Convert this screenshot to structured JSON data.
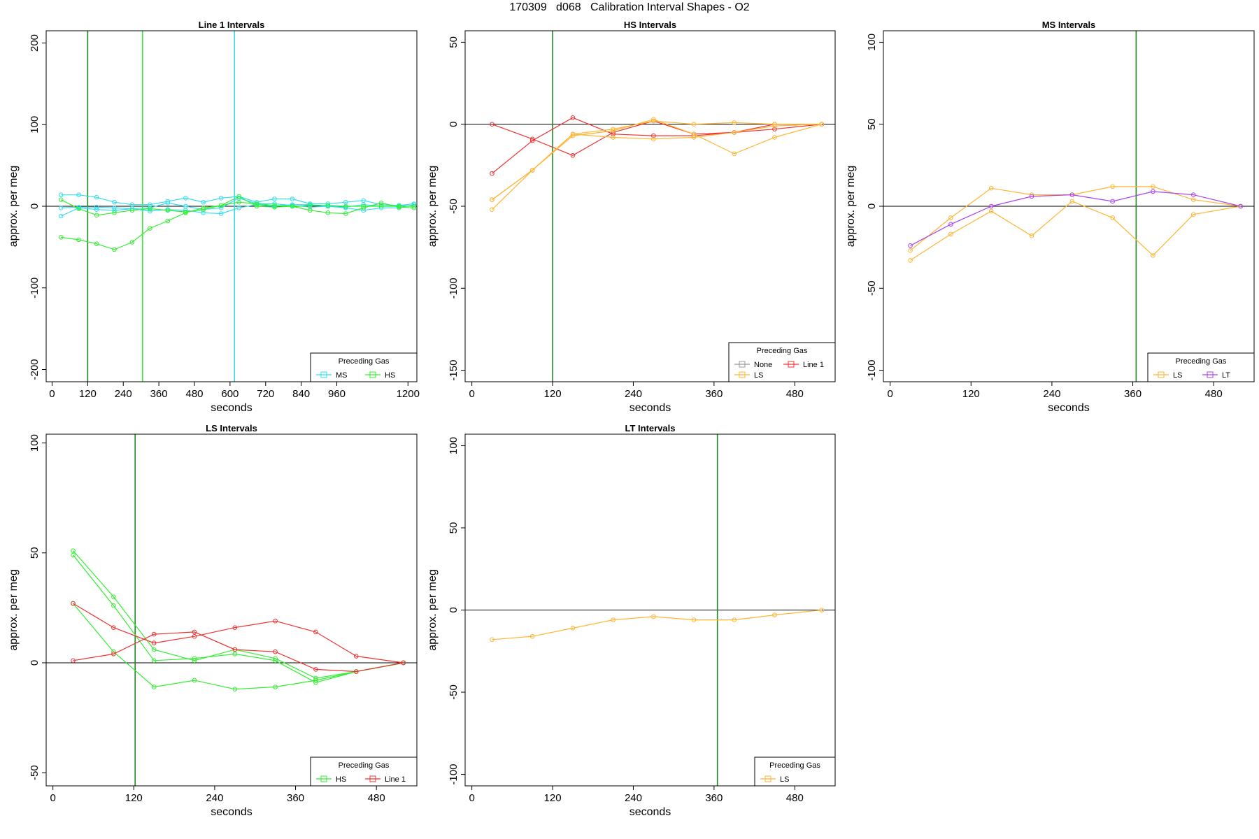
{
  "figure": {
    "title": "170309   d068   Calibration Interval Shapes - O2"
  },
  "colors": {
    "None": "#999999",
    "Line 1": "#ee3333",
    "HS": "#33ee33",
    "MS": "#33ddee",
    "LS": "#ffb533",
    "LT": "#aa44ee",
    "vline_dark_green": "#228822",
    "vline_green": "#33ee33",
    "vline_cyan": "#33ddee"
  },
  "chart_data": [
    {
      "type": "line",
      "title": "Line 1 Intervals",
      "xlabel": "seconds",
      "ylabel": "approx. per meg",
      "xlim": [
        -20,
        1230
      ],
      "ylim": [
        -215,
        215
      ],
      "xticks": [
        0,
        120,
        240,
        360,
        480,
        600,
        720,
        840,
        960,
        1200
      ],
      "yticks": [
        -200,
        -100,
        0,
        100,
        200
      ],
      "hline": 0,
      "vlines": [
        {
          "x": 120,
          "color_key": "vline_dark_green"
        },
        {
          "x": 305,
          "color_key": "vline_green"
        },
        {
          "x": 615,
          "color_key": "vline_cyan"
        }
      ],
      "legend": {
        "title": "Preceding Gas",
        "position": "bottom-right",
        "entries": [
          "MS",
          "HS"
        ]
      },
      "series": [
        {
          "name": "MS",
          "x": [
            30,
            90,
            150,
            210,
            270,
            330,
            390,
            450,
            510,
            570,
            630,
            690,
            750,
            810,
            870,
            930,
            990,
            1050,
            1110,
            1170,
            1220
          ],
          "y": [
            14,
            14,
            11,
            5,
            2,
            2,
            6,
            10,
            5,
            10,
            12,
            5,
            9,
            9,
            3,
            3,
            5,
            7,
            2,
            1,
            3
          ]
        },
        {
          "name": "MS",
          "x": [
            30,
            90,
            150,
            210,
            270,
            330,
            390,
            450,
            510,
            570,
            630,
            690,
            750,
            810,
            870,
            930,
            990,
            1050,
            1110,
            1170,
            1220
          ],
          "y": [
            -12,
            -2,
            -4,
            -5,
            -3,
            -6,
            -4,
            -5,
            -8,
            -9,
            -2,
            2,
            0,
            2,
            2,
            0,
            -2,
            -5,
            -2,
            -2,
            2
          ]
        },
        {
          "name": "MS",
          "x": [
            30,
            90,
            150,
            210,
            270,
            330,
            390,
            450,
            510,
            570,
            630,
            690,
            750,
            810,
            870,
            930,
            990,
            1050,
            1110,
            1170,
            1220
          ],
          "y": [
            -2,
            -1,
            -1,
            -2,
            -3,
            -2,
            4,
            0,
            -4,
            -2,
            10,
            3,
            3,
            1,
            -1,
            0,
            -1,
            2,
            0,
            1,
            0
          ]
        },
        {
          "name": "HS",
          "x": [
            30,
            90,
            150,
            210,
            270,
            330,
            390,
            450,
            510,
            570,
            630,
            690,
            750,
            810,
            870,
            930,
            990,
            1050,
            1110,
            1170,
            1220
          ],
          "y": [
            -38,
            -41,
            -46,
            -53,
            -44,
            -27,
            -18,
            -8,
            -2,
            1,
            5,
            3,
            1,
            0,
            1,
            1,
            0,
            0,
            0,
            0,
            0
          ]
        },
        {
          "name": "HS",
          "x": [
            30,
            90,
            150,
            210,
            270,
            330,
            390,
            450,
            510,
            570,
            630,
            690,
            750,
            810,
            870,
            930,
            990,
            1050,
            1110,
            1170,
            1220
          ],
          "y": [
            8,
            -3,
            -11,
            -8,
            -5,
            -3,
            -5,
            -7,
            -4,
            1,
            12,
            0,
            -1,
            0,
            -5,
            -8,
            -9,
            -2,
            4,
            -1,
            -2
          ]
        }
      ]
    },
    {
      "type": "line",
      "title": "HS Intervals",
      "xlabel": "seconds",
      "ylabel": "approx. per meg",
      "xlim": [
        -10,
        540
      ],
      "ylim": [
        -157,
        57
      ],
      "xticks": [
        0,
        120,
        240,
        360,
        480
      ],
      "yticks": [
        -150,
        -100,
        -50,
        0,
        50
      ],
      "hline": 0,
      "vlines": [
        {
          "x": 120,
          "color_key": "vline_dark_green"
        }
      ],
      "legend": {
        "title": "Preceding Gas",
        "position": "bottom-right",
        "entries": [
          "None",
          "Line 1",
          "LS"
        ]
      },
      "series": [
        {
          "name": "Line 1",
          "x": [
            30,
            90,
            150,
            210,
            270,
            330,
            390,
            450,
            520
          ],
          "y": [
            0,
            -9,
            -19,
            -5,
            2,
            -6,
            -5,
            -3,
            0
          ]
        },
        {
          "name": "Line 1",
          "x": [
            30,
            90,
            150,
            210,
            270,
            330,
            390,
            450,
            520
          ],
          "y": [
            -30,
            -10,
            4,
            -6,
            -7,
            -7,
            -5,
            0,
            0
          ]
        },
        {
          "name": "LS",
          "x": [
            30,
            90,
            150,
            210,
            270,
            330,
            390,
            450,
            520
          ],
          "y": [
            -52,
            -28,
            -7,
            -4,
            3,
            -6,
            -18,
            -8,
            0
          ]
        },
        {
          "name": "LS",
          "x": [
            30,
            90,
            150,
            210,
            270,
            330,
            390,
            450,
            520
          ],
          "y": [
            -46,
            -28,
            -6,
            -8,
            -9,
            -8,
            -5,
            -1,
            0
          ]
        },
        {
          "name": "LS",
          "x": [
            30,
            90,
            150,
            210,
            270,
            330,
            390,
            450,
            520
          ],
          "y": [
            -46,
            -28,
            -6,
            -3,
            2,
            0,
            1,
            0,
            0
          ]
        }
      ]
    },
    {
      "type": "line",
      "title": "MS Intervals",
      "xlabel": "seconds",
      "ylabel": "approx. per meg",
      "xlim": [
        -10,
        540
      ],
      "ylim": [
        -107,
        107
      ],
      "xticks": [
        0,
        120,
        240,
        360,
        480
      ],
      "yticks": [
        -100,
        -50,
        0,
        50,
        100
      ],
      "hline": 0,
      "vlines": [
        {
          "x": 365,
          "color_key": "vline_dark_green"
        }
      ],
      "legend": {
        "title": "Preceding Gas",
        "position": "bottom-right",
        "entries": [
          "LS",
          "LT"
        ]
      },
      "series": [
        {
          "name": "LS",
          "x": [
            30,
            90,
            150,
            210,
            270,
            330,
            390,
            450,
            520
          ],
          "y": [
            -33,
            -17,
            -3,
            -18,
            3,
            -7,
            -30,
            -5,
            0
          ]
        },
        {
          "name": "LS",
          "x": [
            30,
            90,
            150,
            210,
            270,
            330,
            390,
            450,
            520
          ],
          "y": [
            -27,
            -7,
            11,
            7,
            7,
            12,
            12,
            4,
            0
          ]
        },
        {
          "name": "LT",
          "x": [
            30,
            90,
            150,
            210,
            270,
            330,
            390,
            450,
            520
          ],
          "y": [
            -24,
            -11,
            0,
            6,
            7,
            3,
            9,
            7,
            0
          ]
        }
      ]
    },
    {
      "type": "line",
      "title": "LS Intervals",
      "xlabel": "seconds",
      "ylabel": "approx. per meg",
      "xlim": [
        -10,
        540
      ],
      "ylim": [
        -56,
        104
      ],
      "xticks": [
        0,
        120,
        240,
        360,
        480
      ],
      "yticks": [
        -50,
        0,
        50,
        100
      ],
      "hline": 0,
      "vlines": [
        {
          "x": 122,
          "color_key": "vline_dark_green"
        }
      ],
      "legend": {
        "title": "Preceding Gas",
        "position": "bottom-right",
        "entries": [
          "HS",
          "Line 1"
        ]
      },
      "series": [
        {
          "name": "HS",
          "x": [
            30,
            90,
            150,
            210,
            270,
            330,
            390,
            450,
            520
          ],
          "y": [
            51,
            30,
            6,
            1,
            6,
            2,
            -7,
            -4,
            0
          ]
        },
        {
          "name": "HS",
          "x": [
            30,
            90,
            150,
            210,
            270,
            330,
            390,
            450,
            520
          ],
          "y": [
            49,
            26,
            1,
            2,
            4,
            1,
            -9,
            -4,
            0
          ]
        },
        {
          "name": "HS",
          "x": [
            30,
            90,
            150,
            210,
            270,
            330,
            390,
            450,
            520
          ],
          "y": [
            27,
            5,
            -11,
            -8,
            -12,
            -11,
            -8,
            -4,
            0
          ]
        },
        {
          "name": "Line 1",
          "x": [
            30,
            90,
            150,
            210,
            270,
            330,
            390,
            450,
            520
          ],
          "y": [
            27,
            16,
            9,
            12,
            16,
            19,
            14,
            3,
            0
          ]
        },
        {
          "name": "Line 1",
          "x": [
            30,
            90,
            150,
            210,
            270,
            330,
            390,
            450,
            520
          ],
          "y": [
            1,
            4,
            13,
            14,
            6,
            5,
            -3,
            -4,
            0
          ]
        }
      ]
    },
    {
      "type": "line",
      "title": "LT Intervals",
      "xlabel": "seconds",
      "ylabel": "approx. per meg",
      "xlim": [
        -10,
        540
      ],
      "ylim": [
        -107,
        107
      ],
      "xticks": [
        0,
        120,
        240,
        360,
        480
      ],
      "yticks": [
        -100,
        -50,
        0,
        50,
        100
      ],
      "hline": 0,
      "vlines": [
        {
          "x": 365,
          "color_key": "vline_dark_green"
        }
      ],
      "legend": {
        "title": "Preceding Gas",
        "position": "bottom-right",
        "entries": [
          "LS"
        ]
      },
      "series": [
        {
          "name": "LS",
          "x": [
            30,
            90,
            150,
            210,
            270,
            330,
            390,
            450,
            520
          ],
          "y": [
            -18,
            -16,
            -11,
            -6,
            -4,
            -6,
            -6,
            -3,
            0
          ]
        }
      ]
    }
  ]
}
